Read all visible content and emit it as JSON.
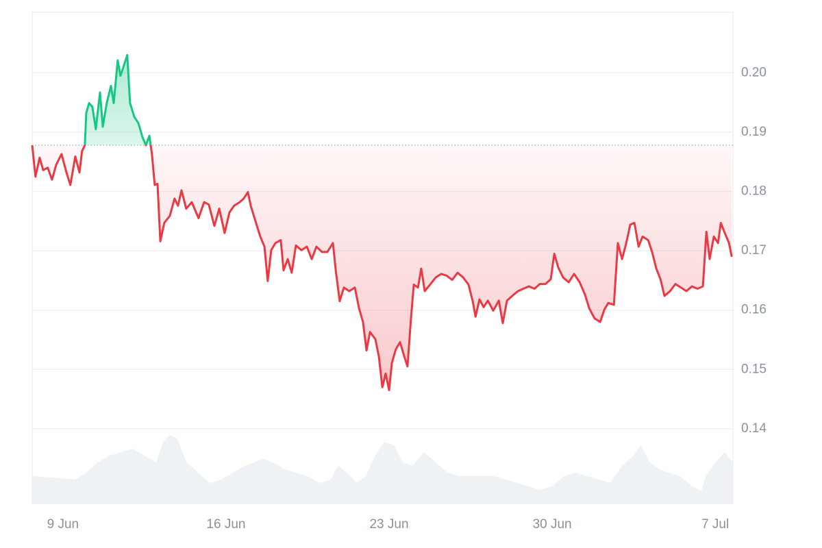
{
  "chart_data": {
    "type": "line",
    "x": [
      7.68,
      7.82,
      8.0,
      8.15,
      8.35,
      8.53,
      8.71,
      8.94,
      9.15,
      9.32,
      9.53,
      9.71,
      9.82,
      9.94,
      10.0,
      10.12,
      10.26,
      10.41,
      10.59,
      10.71,
      10.88,
      11.06,
      11.18,
      11.35,
      11.47,
      11.62,
      11.76,
      11.88,
      12.06,
      12.24,
      12.41,
      12.56,
      12.71,
      12.82,
      12.94,
      13.06,
      13.18,
      13.35,
      13.59,
      13.79,
      13.94,
      14.09,
      14.29,
      14.53,
      14.82,
      15.06,
      15.26,
      15.5,
      15.71,
      15.94,
      16.15,
      16.35,
      16.59,
      16.76,
      16.94,
      17.06,
      17.24,
      17.47,
      17.65,
      17.79,
      17.94,
      18.12,
      18.35,
      18.47,
      18.65,
      18.82,
      19.0,
      19.24,
      19.47,
      19.68,
      19.88,
      20.12,
      20.35,
      20.59,
      20.71,
      20.88,
      21.06,
      21.29,
      21.53,
      21.71,
      21.88,
      22.03,
      22.18,
      22.41,
      22.56,
      22.71,
      22.85,
      23.0,
      23.12,
      23.29,
      23.47,
      23.65,
      23.79,
      23.94,
      24.06,
      24.24,
      24.38,
      24.53,
      24.76,
      25.0,
      25.24,
      25.47,
      25.71,
      25.94,
      26.18,
      26.41,
      26.59,
      26.71,
      26.88,
      27.06,
      27.24,
      27.47,
      27.71,
      27.88,
      28.06,
      28.29,
      28.53,
      28.76,
      29.0,
      29.24,
      29.47,
      29.71,
      29.94,
      30.09,
      30.26,
      30.47,
      30.71,
      30.94,
      31.18,
      31.41,
      31.59,
      31.82,
      32.06,
      32.24,
      32.41,
      32.65,
      32.82,
      33.0,
      33.18,
      33.35,
      33.53,
      33.71,
      33.88,
      34.12,
      34.29,
      34.47,
      34.65,
      34.82,
      35.06,
      35.29,
      35.53,
      35.76,
      36.0,
      36.24,
      36.47,
      36.62,
      36.76,
      36.94,
      37.12,
      37.24,
      37.41,
      37.59,
      37.71
    ],
    "series": [
      {
        "color": "#ea3943",
        "color_above": "#16c784",
        "values": [
          0.1878,
          0.1825,
          0.1857,
          0.1836,
          0.184,
          0.182,
          0.1845,
          0.1863,
          0.1832,
          0.1811,
          0.1859,
          0.1832,
          0.1868,
          0.1878,
          0.1932,
          0.1949,
          0.1943,
          0.1905,
          0.1967,
          0.1909,
          0.1949,
          0.1978,
          0.1949,
          0.2021,
          0.1995,
          0.2013,
          0.203,
          0.1949,
          0.1926,
          0.1915,
          0.1892,
          0.1878,
          0.1894,
          0.1863,
          0.1811,
          0.1813,
          0.1716,
          0.1747,
          0.1759,
          0.1788,
          0.1776,
          0.1802,
          0.1771,
          0.1782,
          0.1755,
          0.1782,
          0.1778,
          0.1742,
          0.1771,
          0.173,
          0.1765,
          0.1776,
          0.1782,
          0.1788,
          0.1799,
          0.1776,
          0.1753,
          0.1724,
          0.1707,
          0.1649,
          0.1701,
          0.1713,
          0.1718,
          0.1667,
          0.1686,
          0.1663,
          0.1709,
          0.1701,
          0.1707,
          0.1686,
          0.1707,
          0.1698,
          0.1698,
          0.1713,
          0.1667,
          0.1615,
          0.1638,
          0.1632,
          0.1638,
          0.1603,
          0.158,
          0.1532,
          0.1563,
          0.1551,
          0.1522,
          0.147,
          0.1493,
          0.1465,
          0.1511,
          0.1534,
          0.1546,
          0.1522,
          0.1505,
          0.1586,
          0.1643,
          0.1638,
          0.167,
          0.1632,
          0.1643,
          0.1655,
          0.1661,
          0.1658,
          0.1651,
          0.1663,
          0.1655,
          0.1643,
          0.1615,
          0.1589,
          0.1618,
          0.1605,
          0.1616,
          0.1599,
          0.1616,
          0.1578,
          0.1616,
          0.1624,
          0.1632,
          0.1636,
          0.164,
          0.1636,
          0.1644,
          0.1644,
          0.1652,
          0.1695,
          0.1672,
          0.1655,
          0.1647,
          0.1661,
          0.1647,
          0.1626,
          0.1603,
          0.1586,
          0.158,
          0.1601,
          0.1612,
          0.1609,
          0.1713,
          0.1686,
          0.1713,
          0.1744,
          0.1747,
          0.1707,
          0.1724,
          0.1718,
          0.1698,
          0.167,
          0.1652,
          0.1624,
          0.1632,
          0.1644,
          0.1638,
          0.1632,
          0.164,
          0.1636,
          0.164,
          0.1732,
          0.1686,
          0.1724,
          0.1713,
          0.1747,
          0.173,
          0.1713,
          0.169
        ]
      }
    ],
    "baseline": 0.1878,
    "volume": {
      "color": "#eff2f5",
      "x": [
        7.68,
        8.5,
        9.5,
        10,
        10.5,
        11,
        11.5,
        12,
        12.5,
        13,
        13.3,
        13.6,
        13.9,
        14.3,
        14.8,
        15.3,
        15.8,
        16.3,
        16.8,
        17.2,
        17.6,
        18,
        18.5,
        19,
        19.5,
        20,
        20.5,
        20.8,
        21.2,
        21.6,
        22,
        22.4,
        22.8,
        23.2,
        23.6,
        24,
        24.5,
        25,
        25.5,
        26,
        26.5,
        27,
        27.5,
        28,
        28.5,
        29,
        29.5,
        30,
        30.5,
        31,
        31.5,
        32,
        32.5,
        33,
        33.5,
        33.8,
        34.2,
        34.6,
        35,
        35.5,
        36,
        36.4,
        36.6,
        37,
        37.4,
        37.76
      ],
      "values": [
        40,
        38,
        35,
        45,
        60,
        70,
        75,
        80,
        70,
        60,
        90,
        100,
        95,
        60,
        45,
        30,
        35,
        45,
        55,
        60,
        65,
        60,
        50,
        45,
        40,
        30,
        35,
        55,
        45,
        30,
        40,
        70,
        90,
        85,
        60,
        55,
        75,
        60,
        45,
        40,
        40,
        40,
        40,
        35,
        30,
        25,
        20,
        25,
        40,
        45,
        40,
        35,
        30,
        55,
        70,
        85,
        60,
        50,
        45,
        40,
        25,
        18,
        40,
        60,
        75,
        60
      ]
    },
    "xlim": [
      7.68,
      37.76
    ],
    "xticks": [
      {
        "value": 9,
        "label": "9 Jun"
      },
      {
        "value": 16,
        "label": "16 Jun"
      },
      {
        "value": 23,
        "label": "23 Jun"
      },
      {
        "value": 30,
        "label": "30 Jun"
      },
      {
        "value": 37,
        "label": "7 Jul"
      }
    ],
    "ylim": [
      0.1274,
      0.2102
    ],
    "yticks": [
      {
        "value": 0.2,
        "label": "0.20"
      },
      0.19,
      0.18,
      0.17,
      0.16,
      0.15,
      0.14
    ],
    "grid": true
  }
}
